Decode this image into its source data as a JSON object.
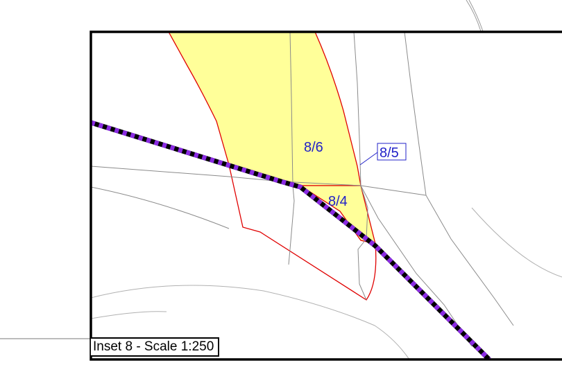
{
  "inset": {
    "caption": "Inset 8 - Scale 1:250"
  },
  "plots": {
    "p86": "8/6",
    "p85": "8/5",
    "p84": "8/4"
  },
  "colors": {
    "plot_fill": "#ffff99",
    "plot_outline": "#e00000",
    "boundary_dash_a": "#8a2be2",
    "boundary_dash_b": "#000000",
    "label": "#2020c8",
    "frame": "#000000",
    "background_lines": "#888888"
  }
}
